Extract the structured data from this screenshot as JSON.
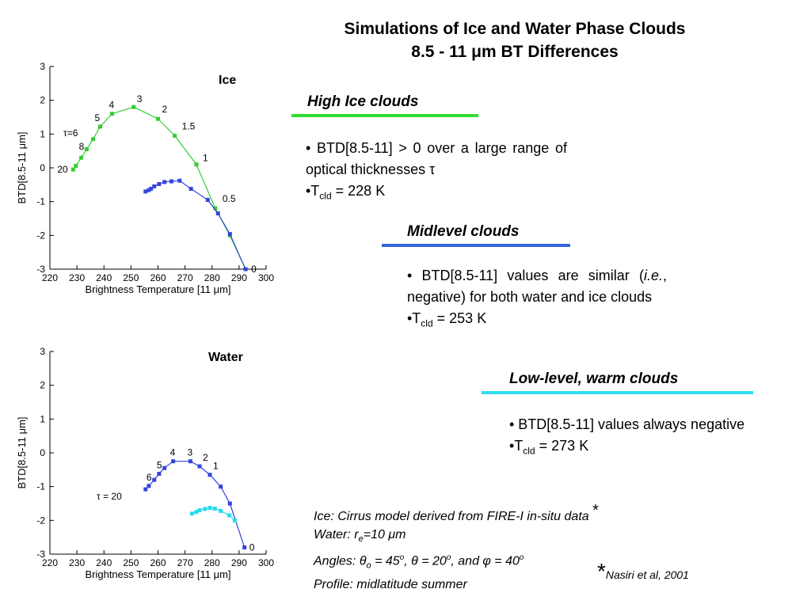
{
  "title": {
    "line1": "Simulations of Ice and Water Phase Clouds",
    "line2": "8.5 - 11 μm BT Differences"
  },
  "sections": [
    {
      "heading": "High Ice clouds",
      "color": "#33dd33",
      "bullet1": "• BTD[8.5-11] > 0 over a large range of optical thicknesses τ",
      "tcld_prefix": "•T",
      "tcld_sub": "cld",
      "tcld_value": " = 228 K"
    },
    {
      "heading": "Midlevel clouds",
      "color": "#3366dd",
      "bullet1_a": "• BTD[8.5-11] values are similar (",
      "bullet1_em": "i.e.",
      "bullet1_b": ", negative) for both water and ice clouds",
      "tcld_prefix": "•T",
      "tcld_sub": "cld",
      "tcld_value": " = 253 K"
    },
    {
      "heading": "Low-level, warm clouds",
      "color": "#33ddee",
      "bullet1": "• BTD[8.5-11] values always negative",
      "tcld_prefix": "•T",
      "tcld_sub": "cld",
      "tcld_value": " = 273 K"
    }
  ],
  "notes": {
    "ice": "Ice:  Cirrus model derived from FIRE-I in-situ data",
    "ice_star": "*",
    "water_prefix": "Water:  r",
    "water_sub": "e",
    "water_value": "=10 μm",
    "angles_prefix": "Angles:  ",
    "theta0": "θ",
    "theta0_sub": "o",
    "angles_a": " = 45",
    "deg": "o",
    "angles_b": ", θ = 20",
    "angles_c": ", and φ = 40",
    "profile": "Profile:  midlatitude summer",
    "ref_star": "*",
    "ref": "Nasiri et al, 2001"
  },
  "chart_data": [
    {
      "type": "line",
      "title": "Ice",
      "xlabel": "Brightness Temperature [11 μm]",
      "ylabel": "BTD[8.5-11 μm]",
      "xlim": [
        220,
        300
      ],
      "ylim": [
        -3,
        3
      ],
      "xticks": [
        220,
        230,
        240,
        250,
        260,
        270,
        280,
        290,
        300
      ],
      "yticks": [
        -3,
        -2,
        -1,
        0,
        1,
        2,
        3
      ],
      "grid": false,
      "tau_label": "τ=6",
      "series": [
        {
          "color": "#33cc33",
          "x": [
            228.6,
            229.6,
            231.6,
            233.6,
            236.0,
            238.6,
            243.0,
            251.0,
            260.0,
            266.2,
            274.2,
            281.2,
            286.6,
            292.4
          ],
          "y": [
            -0.05,
            0.06,
            0.3,
            0.55,
            0.85,
            1.22,
            1.6,
            1.8,
            1.45,
            0.95,
            0.1,
            -1.2,
            -2.0,
            -3.0
          ],
          "point_labels": [
            "20",
            "",
            "8",
            "",
            "",
            "5",
            "4",
            "3",
            "2",
            "1.5",
            "1",
            "0.5",
            "",
            "0"
          ]
        },
        {
          "color": "#3344dd",
          "x": [
            255.4,
            256.6,
            257.4,
            258.6,
            260.4,
            262.4,
            265.0,
            268.0,
            272.2,
            278.4,
            282.2,
            286.6,
            292.4
          ],
          "y": [
            -0.7,
            -0.66,
            -0.62,
            -0.55,
            -0.48,
            -0.42,
            -0.4,
            -0.38,
            -0.62,
            -0.95,
            -1.35,
            -1.96,
            -3.0
          ],
          "point_labels": [
            "",
            "",
            "",
            "",
            "",
            "",
            "",
            "",
            "",
            "",
            "",
            "",
            ""
          ]
        }
      ]
    },
    {
      "type": "line",
      "title": "Water",
      "xlabel": "Brightness Temperature [11 μm]",
      "ylabel": "BTD[8.5-11 μm]",
      "xlim": [
        220,
        300
      ],
      "ylim": [
        -3,
        3
      ],
      "xticks": [
        220,
        230,
        240,
        250,
        260,
        270,
        280,
        290,
        300
      ],
      "yticks": [
        -3,
        -2,
        -1,
        0,
        1,
        2,
        3
      ],
      "grid": false,
      "tau_label": "τ = 20",
      "series": [
        {
          "color": "#3344dd",
          "x": [
            255.4,
            256.6,
            258.6,
            260.4,
            262.4,
            265.6,
            272.0,
            275.4,
            279.2,
            283.2,
            286.6,
            292.0
          ],
          "y": [
            -1.08,
            -0.98,
            -0.8,
            -0.62,
            -0.45,
            -0.25,
            -0.25,
            -0.4,
            -0.65,
            -1.0,
            -1.5,
            -2.8
          ],
          "point_labels": [
            "",
            "6",
            "",
            "5",
            "",
            "4",
            "3",
            "2",
            "1",
            "",
            "",
            "0"
          ]
        },
        {
          "color": "#22ddee",
          "x": [
            272.6,
            274.2,
            275.4,
            277.4,
            279.2,
            281.0,
            283.2,
            286.4,
            288.4
          ],
          "y": [
            -1.8,
            -1.75,
            -1.7,
            -1.66,
            -1.63,
            -1.65,
            -1.72,
            -1.85,
            -2.0
          ],
          "point_labels": [
            "",
            "",
            "",
            "",
            "",
            "",
            "",
            "",
            ""
          ]
        }
      ]
    }
  ]
}
